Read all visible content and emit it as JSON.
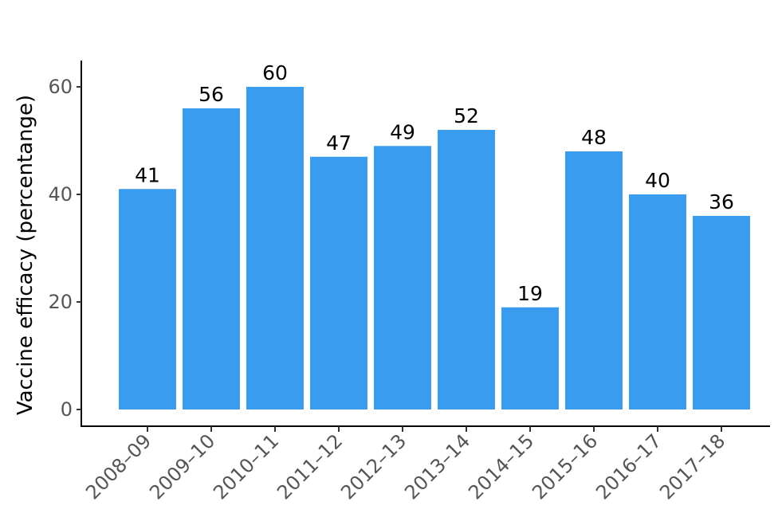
{
  "chart_data": {
    "type": "bar",
    "title": "",
    "xlabel": "",
    "ylabel": "Vaccine efficacy (percentange)",
    "categories": [
      "2008–09",
      "2009–10",
      "2010–11",
      "2011–12",
      "2012–13",
      "2013–14",
      "2014–15",
      "2015–16",
      "2016–17",
      "2017–18"
    ],
    "values": [
      41,
      56,
      60,
      47,
      49,
      52,
      19,
      48,
      40,
      36
    ],
    "data_labels": [
      "41",
      "56",
      "60",
      "47",
      "49",
      "52",
      "19",
      "48",
      "40",
      "36"
    ],
    "y_ticks": [
      0,
      20,
      40,
      60
    ],
    "y_tick_labels": [
      "0",
      "20",
      "40",
      "60"
    ],
    "ylim": [
      -3,
      65
    ],
    "grid": false,
    "legend": "none",
    "bar_color": "#399CEE",
    "axis_color": "#000000",
    "tick_label_color": "#555555"
  }
}
